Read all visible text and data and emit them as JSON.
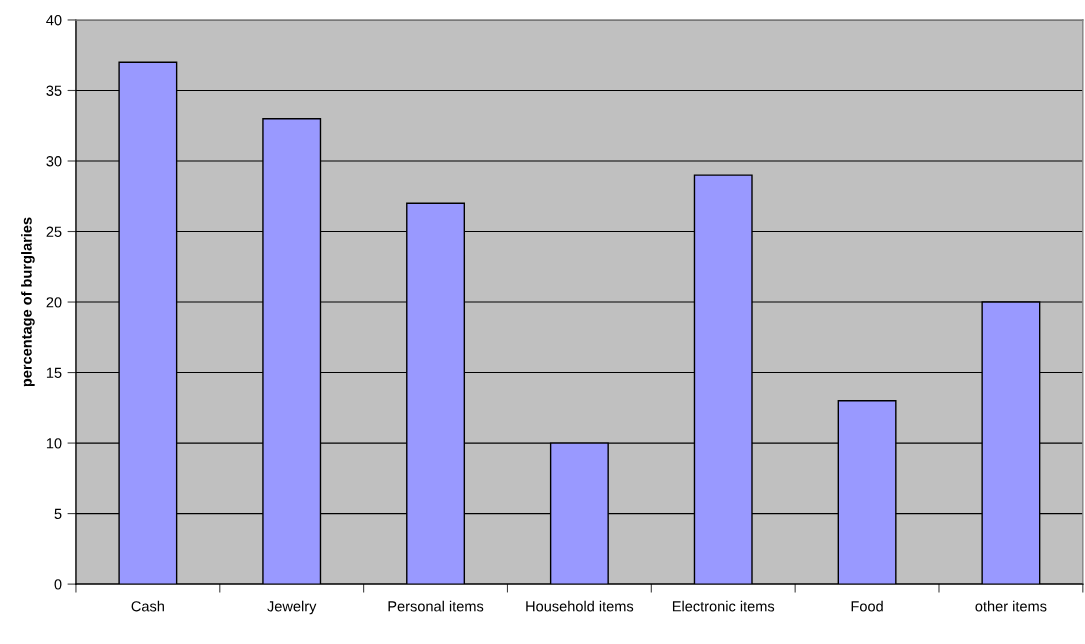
{
  "chart_data": {
    "type": "bar",
    "ylabel": "percentage of burglaries",
    "categories": [
      "Cash",
      "Jewelry",
      "Personal items",
      "Household items",
      "Electronic items",
      "Food",
      "other items"
    ],
    "values": [
      37,
      33,
      27,
      10,
      29,
      13,
      20
    ],
    "color": "#9999ff",
    "ylim": [
      0,
      40
    ],
    "yticks": [
      0,
      5,
      10,
      15,
      20,
      25,
      30,
      35,
      40
    ],
    "grid": "y"
  }
}
